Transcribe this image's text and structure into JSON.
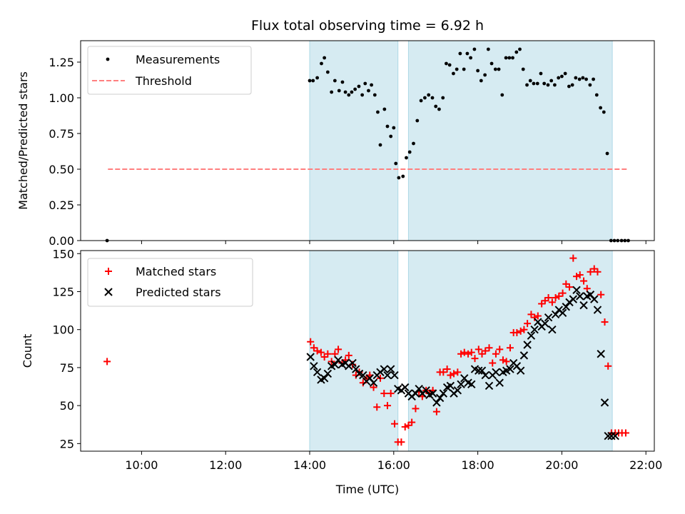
{
  "colors": {
    "background": "#ffffff",
    "span_fill": "#add8e6",
    "measurement": "#000000",
    "threshold": "#ff7f7f",
    "matched": "#ff0000",
    "predicted": "#000000"
  },
  "chart_data": [
    {
      "type": "scatter",
      "title": "Flux total observing time = 6.92 h",
      "xlabel": "",
      "ylabel": "Matched/Predicted stars",
      "xlim": [
        8.55,
        22.2
      ],
      "ylim": [
        0,
        1.4
      ],
      "yticks": [
        0.0,
        0.25,
        0.5,
        0.75,
        1.0,
        1.25
      ],
      "ytick_labels": [
        "0.00",
        "0.25",
        "0.50",
        "0.75",
        "1.00",
        "1.25"
      ],
      "xticks": [
        10,
        12,
        14,
        16,
        18,
        20,
        22
      ],
      "show_xtick_labels": false,
      "grid": false,
      "legend_position": "upper-left",
      "observing_windows": [
        [
          14.0,
          16.1
        ],
        [
          16.35,
          21.2
        ]
      ],
      "series": [
        {
          "name": "Threshold",
          "type": "line",
          "style": "dashed",
          "color": "#ff7f7f",
          "x": [
            9.2,
            21.55
          ],
          "y": [
            0.5,
            0.5
          ]
        },
        {
          "name": "Measurements",
          "type": "scatter",
          "marker": "dot",
          "color": "#000000",
          "x": [
            9.18,
            14.0,
            14.08,
            14.18,
            14.28,
            14.35,
            14.43,
            14.52,
            14.6,
            14.7,
            14.78,
            14.85,
            14.93,
            15.0,
            15.08,
            15.17,
            15.25,
            15.32,
            15.4,
            15.47,
            15.55,
            15.62,
            15.68,
            15.78,
            15.85,
            15.93,
            16.0,
            16.05,
            16.12,
            16.22,
            16.3,
            16.38,
            16.47,
            16.56,
            16.65,
            16.74,
            16.83,
            16.92,
            17.0,
            17.08,
            17.17,
            17.25,
            17.33,
            17.42,
            17.5,
            17.58,
            17.67,
            17.75,
            17.83,
            17.92,
            18.0,
            18.08,
            18.17,
            18.25,
            18.33,
            18.42,
            18.5,
            18.58,
            18.67,
            18.75,
            18.83,
            18.92,
            19.0,
            19.08,
            19.17,
            19.25,
            19.33,
            19.42,
            19.5,
            19.58,
            19.67,
            19.75,
            19.83,
            19.92,
            20.0,
            20.08,
            20.17,
            20.25,
            20.33,
            20.42,
            20.5,
            20.58,
            20.67,
            20.75,
            20.83,
            20.92,
            21.0,
            21.08,
            21.17,
            21.25,
            21.33,
            21.42,
            21.5,
            21.58
          ],
          "y": [
            0.0,
            1.12,
            1.12,
            1.14,
            1.24,
            1.28,
            1.18,
            1.04,
            1.12,
            1.05,
            1.11,
            1.04,
            1.02,
            1.04,
            1.06,
            1.08,
            1.02,
            1.1,
            1.05,
            1.09,
            1.02,
            0.9,
            0.67,
            0.92,
            0.8,
            0.73,
            0.79,
            0.54,
            0.44,
            0.45,
            0.58,
            0.62,
            0.68,
            0.84,
            0.98,
            1.0,
            1.02,
            1.0,
            0.94,
            0.92,
            1.0,
            1.24,
            1.23,
            1.17,
            1.2,
            1.31,
            1.2,
            1.31,
            1.28,
            1.34,
            1.19,
            1.12,
            1.16,
            1.34,
            1.24,
            1.2,
            1.2,
            1.02,
            1.28,
            1.28,
            1.28,
            1.32,
            1.34,
            1.2,
            1.09,
            1.12,
            1.1,
            1.1,
            1.17,
            1.1,
            1.09,
            1.12,
            1.09,
            1.14,
            1.15,
            1.17,
            1.08,
            1.09,
            1.14,
            1.13,
            1.14,
            1.13,
            1.09,
            1.13,
            1.02,
            0.93,
            0.9,
            0.61,
            0.0,
            0.0,
            0.0,
            0.0,
            0.0,
            0.0
          ]
        }
      ]
    },
    {
      "type": "scatter",
      "title": "",
      "xlabel": "Time (UTC)",
      "ylabel": "Count",
      "xlim": [
        8.55,
        22.2
      ],
      "ylim": [
        20,
        152
      ],
      "yticks": [
        25,
        50,
        75,
        100,
        125,
        150
      ],
      "ytick_labels": [
        "25",
        "50",
        "75",
        "100",
        "125",
        "150"
      ],
      "xticks": [
        10,
        12,
        14,
        16,
        18,
        20,
        22
      ],
      "xtick_labels": [
        "10:00",
        "12:00",
        "14:00",
        "16:00",
        "18:00",
        "20:00",
        "22:00"
      ],
      "grid": false,
      "legend_position": "upper-left",
      "observing_windows": [
        [
          14.0,
          16.1
        ],
        [
          16.35,
          21.2
        ]
      ],
      "series": [
        {
          "name": "Matched stars",
          "type": "scatter",
          "marker": "plus",
          "color": "#ff0000",
          "x": [
            9.18,
            14.02,
            14.1,
            14.18,
            14.27,
            14.35,
            14.43,
            14.52,
            14.6,
            14.68,
            14.77,
            14.85,
            14.93,
            15.02,
            15.1,
            15.18,
            15.27,
            15.35,
            15.43,
            15.52,
            15.6,
            15.68,
            15.77,
            15.85,
            15.93,
            16.02,
            16.1,
            16.18,
            16.27,
            16.35,
            16.43,
            16.52,
            16.6,
            16.68,
            16.77,
            16.85,
            16.93,
            17.02,
            17.1,
            17.18,
            17.27,
            17.35,
            17.43,
            17.52,
            17.6,
            17.68,
            17.77,
            17.85,
            17.93,
            18.02,
            18.1,
            18.18,
            18.27,
            18.35,
            18.43,
            18.52,
            18.6,
            18.68,
            18.77,
            18.85,
            18.93,
            19.02,
            19.1,
            19.18,
            19.27,
            19.35,
            19.43,
            19.52,
            19.6,
            19.68,
            19.77,
            19.85,
            19.93,
            20.02,
            20.1,
            20.18,
            20.27,
            20.35,
            20.43,
            20.52,
            20.6,
            20.68,
            20.77,
            20.85,
            20.93,
            21.02,
            21.1,
            21.18,
            21.27,
            21.35,
            21.43,
            21.52
          ],
          "y": [
            79,
            92,
            88,
            86,
            85,
            82,
            84,
            79,
            84,
            87,
            78,
            80,
            83,
            77,
            70,
            72,
            65,
            68,
            70,
            62,
            49,
            68,
            58,
            50,
            58,
            38,
            26,
            26,
            36,
            37,
            39,
            48,
            59,
            56,
            60,
            58,
            60,
            46,
            72,
            72,
            74,
            70,
            71,
            72,
            84,
            85,
            84,
            85,
            81,
            87,
            84,
            86,
            88,
            78,
            84,
            87,
            80,
            79,
            88,
            98,
            98,
            99,
            100,
            104,
            110,
            108,
            109,
            117,
            119,
            121,
            118,
            121,
            122,
            124,
            130,
            128,
            147,
            135,
            136,
            132,
            127,
            138,
            140,
            138,
            123,
            105,
            76,
            32,
            32,
            32,
            32,
            32
          ]
        },
        {
          "name": "Predicted stars",
          "type": "scatter",
          "marker": "x",
          "color": "#000000",
          "x": [
            14.02,
            14.1,
            14.18,
            14.27,
            14.35,
            14.43,
            14.52,
            14.6,
            14.68,
            14.77,
            14.85,
            14.93,
            15.02,
            15.1,
            15.18,
            15.27,
            15.35,
            15.43,
            15.52,
            15.6,
            15.68,
            15.77,
            15.85,
            15.93,
            16.02,
            16.1,
            16.18,
            16.27,
            16.35,
            16.43,
            16.52,
            16.6,
            16.68,
            16.77,
            16.85,
            16.93,
            17.02,
            17.1,
            17.18,
            17.27,
            17.35,
            17.43,
            17.52,
            17.6,
            17.68,
            17.77,
            17.85,
            17.93,
            18.02,
            18.1,
            18.18,
            18.27,
            18.35,
            18.43,
            18.52,
            18.6,
            18.68,
            18.77,
            18.85,
            18.93,
            19.02,
            19.1,
            19.18,
            19.27,
            19.35,
            19.43,
            19.52,
            19.6,
            19.68,
            19.77,
            19.85,
            19.93,
            20.02,
            20.1,
            20.18,
            20.27,
            20.35,
            20.43,
            20.52,
            20.6,
            20.68,
            20.77,
            20.85,
            20.93,
            21.02,
            21.1,
            21.18,
            21.27
          ],
          "y": [
            82,
            76,
            72,
            67,
            68,
            71,
            76,
            77,
            80,
            77,
            78,
            76,
            78,
            74,
            71,
            70,
            66,
            68,
            65,
            70,
            72,
            74,
            70,
            74,
            70,
            61,
            60,
            62,
            58,
            56,
            58,
            61,
            58,
            60,
            57,
            58,
            52,
            55,
            58,
            62,
            63,
            58,
            60,
            64,
            68,
            65,
            64,
            74,
            73,
            73,
            70,
            63,
            70,
            72,
            65,
            72,
            73,
            74,
            78,
            76,
            73,
            83,
            90,
            96,
            100,
            105,
            102,
            104,
            108,
            100,
            110,
            113,
            111,
            115,
            118,
            120,
            126,
            122,
            116,
            122,
            123,
            120,
            113,
            84,
            52,
            30,
            30,
            30
          ]
        }
      ]
    }
  ]
}
